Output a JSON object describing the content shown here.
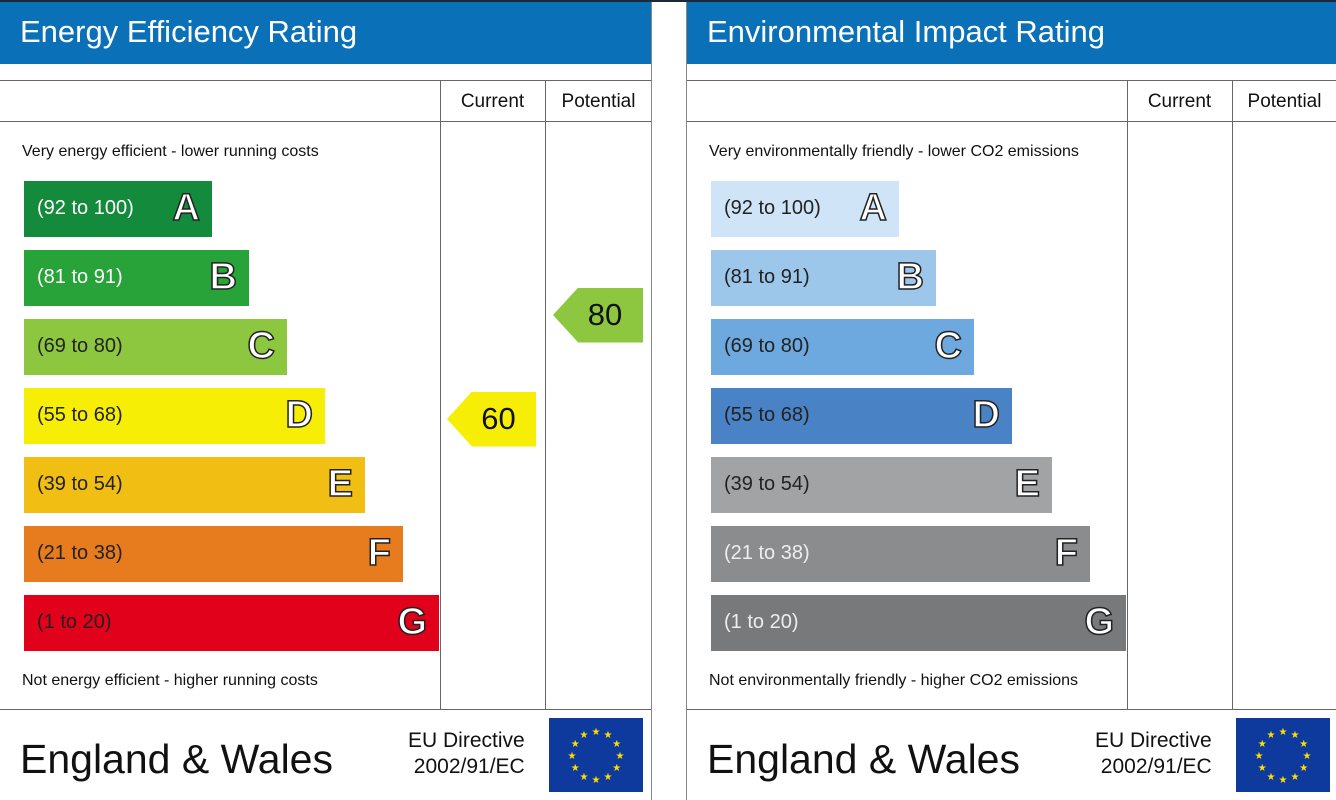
{
  "panels": [
    {
      "title": "Energy Efficiency Rating",
      "col_current": "Current",
      "col_potential": "Potential",
      "top_note": "Very energy efficient - lower running costs",
      "bottom_note": "Not energy efficient - higher running costs",
      "bands": [
        {
          "range": "(92 to 100)",
          "letter": "A",
          "color": "#138a3c",
          "text": "#ffffff"
        },
        {
          "range": "(81 to 91)",
          "letter": "B",
          "color": "#27a339",
          "text": "#ffffff"
        },
        {
          "range": "(69 to 80)",
          "letter": "C",
          "color": "#8dc63f",
          "text": "#222222"
        },
        {
          "range": "(55 to 68)",
          "letter": "D",
          "color": "#f7ee06",
          "text": "#222222"
        },
        {
          "range": "(39 to 54)",
          "letter": "E",
          "color": "#f1be14",
          "text": "#222222"
        },
        {
          "range": "(21 to 38)",
          "letter": "F",
          "color": "#e77c1e",
          "text": "#222222"
        },
        {
          "range": "(1 to 20)",
          "letter": "G",
          "color": "#e2011b",
          "text": "#222222"
        }
      ],
      "current": {
        "value": "60",
        "color": "#f7ee06"
      },
      "potential": {
        "value": "80",
        "color": "#8dc63f"
      },
      "footer": {
        "region": "England & Wales",
        "directive_line1": "EU Directive",
        "directive_line2": "2002/91/EC"
      }
    },
    {
      "title": "Environmental Impact Rating",
      "col_current": "Current",
      "col_potential": "Potential",
      "top_note": "Very environmentally friendly - lower CO2 emissions",
      "bottom_note": "Not environmentally friendly - higher CO2 emissions",
      "bands": [
        {
          "range": "(92 to 100)",
          "letter": "A",
          "color": "#cfe4f6",
          "text": "#222222"
        },
        {
          "range": "(81 to 91)",
          "letter": "B",
          "color": "#9cc7ea",
          "text": "#222222"
        },
        {
          "range": "(69 to 80)",
          "letter": "C",
          "color": "#6da8de",
          "text": "#222222"
        },
        {
          "range": "(55 to 68)",
          "letter": "D",
          "color": "#4a82c6",
          "text": "#222222"
        },
        {
          "range": "(39 to 54)",
          "letter": "E",
          "color": "#a2a3a5",
          "text": "#222222"
        },
        {
          "range": "(21 to 38)",
          "letter": "F",
          "color": "#8b8c8e",
          "text": "#eeeeee"
        },
        {
          "range": "(1 to 20)",
          "letter": "G",
          "color": "#78797b",
          "text": "#eeeeee"
        }
      ],
      "footer": {
        "region": "England & Wales",
        "directive_line1": "EU Directive",
        "directive_line2": "2002/91/EC"
      }
    }
  ]
}
